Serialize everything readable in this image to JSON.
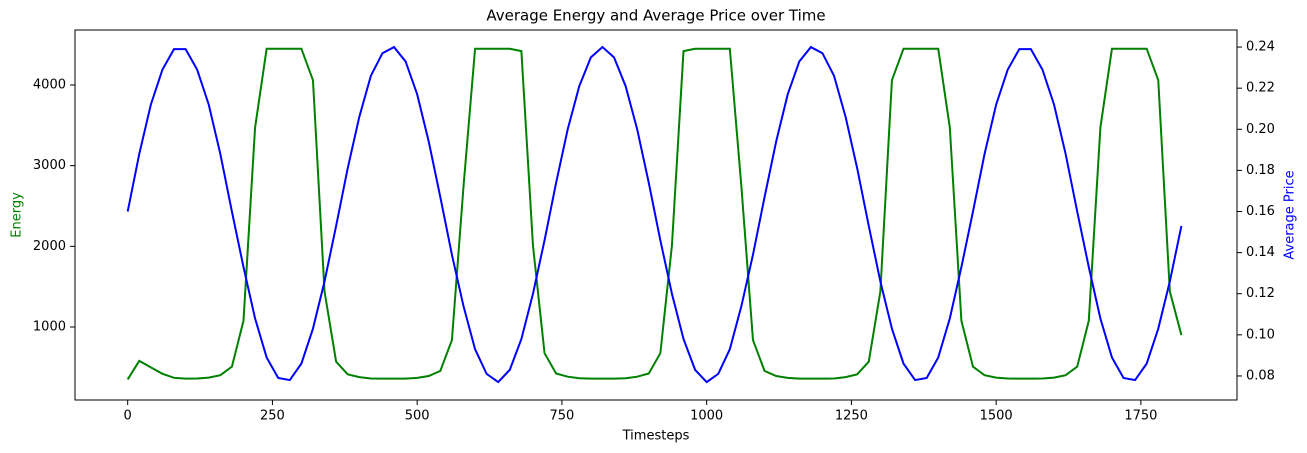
{
  "chart_data": {
    "type": "line",
    "title": "Average Energy and Average Price over Time",
    "xlabel": "Timesteps",
    "ylabel": "Energy",
    "y2label": "Average Price",
    "x": [
      0,
      20,
      40,
      60,
      80,
      100,
      120,
      140,
      160,
      180,
      200,
      220,
      240,
      260,
      280,
      300,
      320,
      340,
      360,
      380,
      400,
      420,
      440,
      460,
      480,
      500,
      520,
      540,
      560,
      580,
      600,
      620,
      640,
      660,
      680,
      700,
      720,
      740,
      760,
      780,
      800,
      820,
      840,
      860,
      880,
      900,
      920,
      940,
      960,
      980,
      1000,
      1020,
      1040,
      1060,
      1080,
      1100,
      1120,
      1140,
      1160,
      1180,
      1200,
      1220,
      1240,
      1260,
      1280,
      1300,
      1320,
      1340,
      1360,
      1380,
      1400,
      1420,
      1440,
      1460,
      1480,
      1500,
      1520,
      1540,
      1560,
      1580,
      1600,
      1620,
      1640,
      1660,
      1680,
      1700,
      1720,
      1740,
      1760,
      1780,
      1800,
      1820
    ],
    "series": [
      {
        "name": "Energy",
        "color": "#008000",
        "axis": "y",
        "values": [
          350,
          580,
          500,
          420,
          370,
          360,
          362,
          372,
          402,
          508,
          1077,
          3470,
          4450,
          4450,
          4450,
          4450,
          4060,
          1440,
          570,
          413,
          379,
          362,
          360,
          360,
          360,
          369,
          392,
          456,
          838,
          2740,
          4450,
          4450,
          4450,
          4450,
          4420,
          2010,
          675,
          424,
          384,
          365,
          360,
          360,
          360,
          365,
          384,
          424,
          675,
          2010,
          4420,
          4450,
          4450,
          4450,
          4450,
          2740,
          838,
          456,
          392,
          369,
          360,
          360,
          360,
          362,
          379,
          413,
          570,
          1440,
          4060,
          4450,
          4450,
          4450,
          4450,
          3470,
          1077,
          508,
          402,
          372,
          362,
          360,
          360,
          362,
          372,
          402,
          508,
          1077,
          3470,
          4450,
          4450,
          4450,
          4450,
          4060,
          1440,
          900
        ]
      },
      {
        "name": "Average Price",
        "color": "#0000ff",
        "axis": "y2",
        "values": [
          0.16,
          0.188,
          0.212,
          0.229,
          0.239,
          0.239,
          0.229,
          0.212,
          0.188,
          0.16,
          0.133,
          0.108,
          0.089,
          0.079,
          0.078,
          0.086,
          0.103,
          0.126,
          0.153,
          0.181,
          0.206,
          0.226,
          0.237,
          0.24,
          0.233,
          0.217,
          0.194,
          0.167,
          0.139,
          0.114,
          0.093,
          0.081,
          0.077,
          0.083,
          0.098,
          0.12,
          0.146,
          0.174,
          0.2,
          0.221,
          0.235,
          0.24,
          0.235,
          0.221,
          0.2,
          0.174,
          0.146,
          0.12,
          0.098,
          0.083,
          0.077,
          0.081,
          0.093,
          0.114,
          0.139,
          0.167,
          0.194,
          0.217,
          0.233,
          0.24,
          0.237,
          0.226,
          0.206,
          0.181,
          0.153,
          0.126,
          0.103,
          0.086,
          0.078,
          0.079,
          0.089,
          0.108,
          0.133,
          0.16,
          0.188,
          0.212,
          0.229,
          0.239,
          0.239,
          0.229,
          0.212,
          0.188,
          0.16,
          0.133,
          0.108,
          0.089,
          0.079,
          0.078,
          0.086,
          0.103,
          0.126,
          0.153
        ]
      }
    ],
    "xlim": [
      -91,
      1916
    ],
    "xticks": [
      0,
      250,
      500,
      750,
      1000,
      1250,
      1500,
      1750
    ],
    "ylim": [
      95,
      4682
    ],
    "yticks": [
      1000,
      2000,
      3000,
      4000
    ],
    "y2lim": [
      0.0683,
      0.2483
    ],
    "y2ticks": [
      0.08,
      {
        "value": 0.1,
        "label": "0.10"
      },
      0.12,
      0.14,
      0.16,
      0.18,
      {
        "value": 0.2,
        "label": "0.20"
      },
      0.22,
      0.24
    ]
  }
}
